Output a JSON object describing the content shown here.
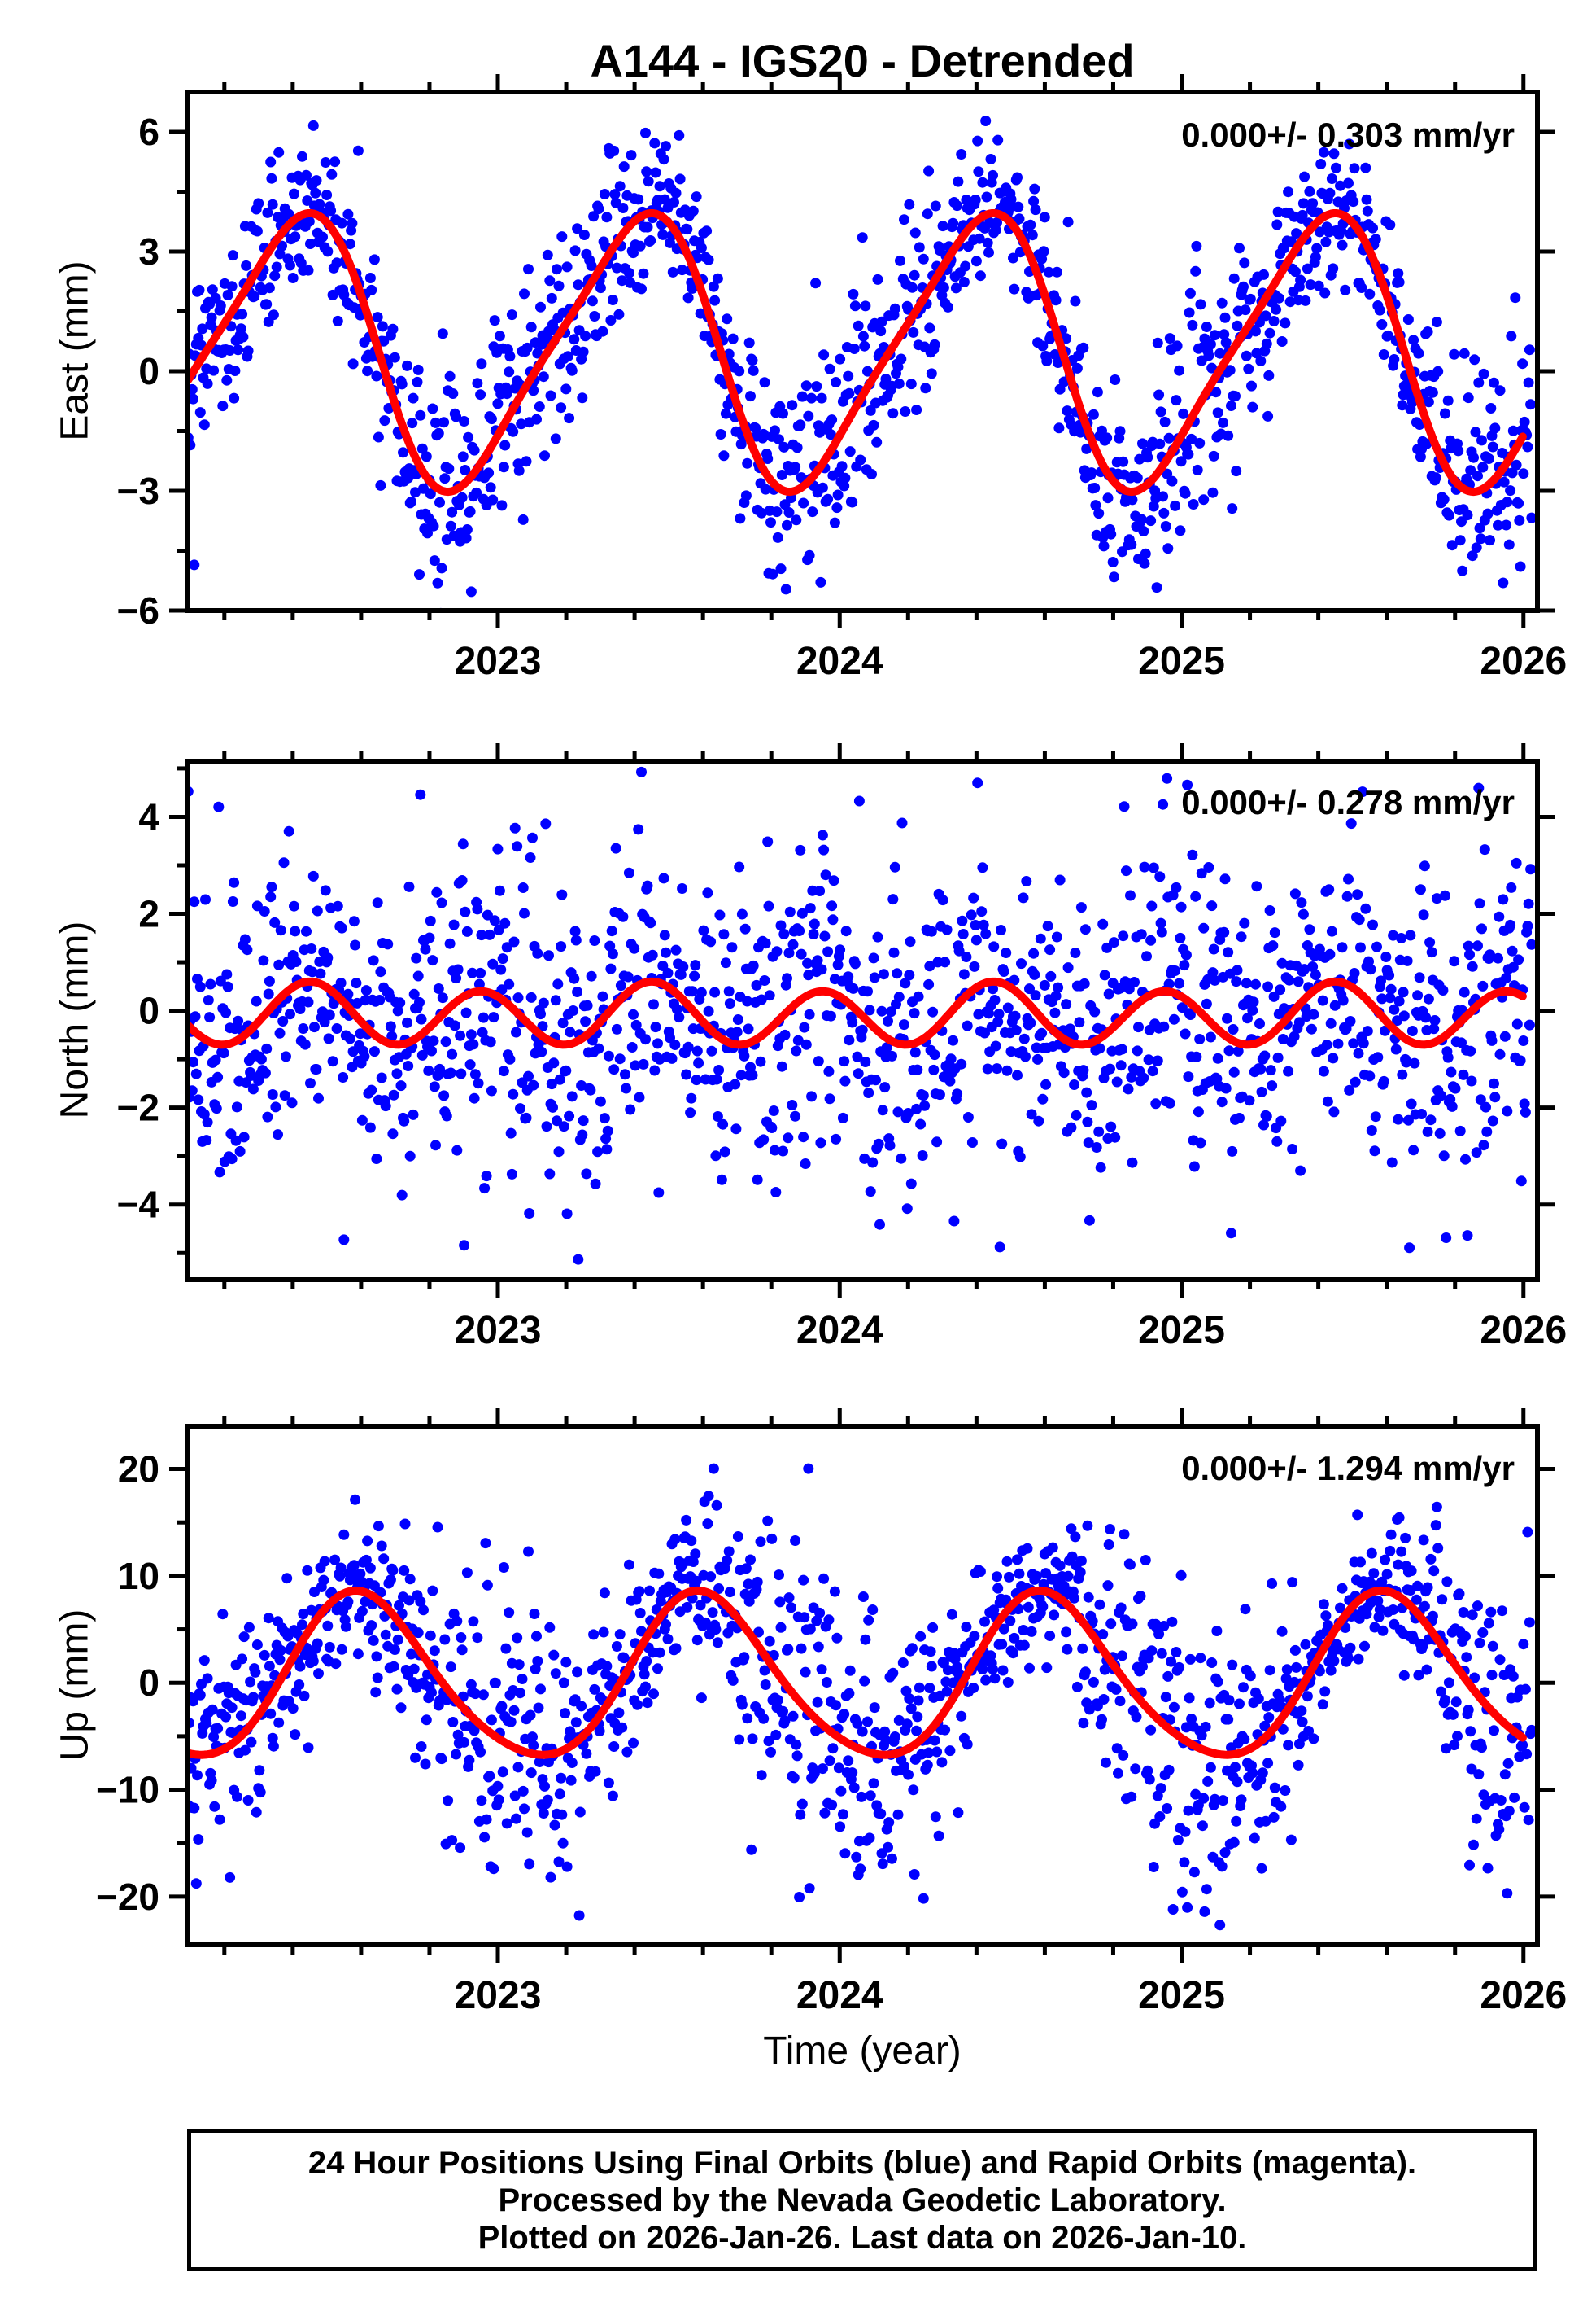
{
  "title": "A144 - IGS20 - Detrended",
  "xlabel": "Time (year)",
  "caption": {
    "lines": [
      "24 Hour Positions Using Final Orbits (blue) and Rapid Orbits (magenta).",
      "Processed by the Nevada Geodetic Laboratory.",
      "Plotted on 2026-Jan-26. Last data on 2026-Jan-10."
    ]
  },
  "colors": {
    "final_orbit_points": "#0000ff",
    "rapid_orbit_points": "#ff00ff",
    "fit_curve": "#ff0000",
    "frame": "#000000",
    "background": "#ffffff"
  },
  "chart_data": {
    "type": "scatter",
    "title": "A144 - IGS20 - Detrended",
    "xlabel": "Time (year)",
    "x_range": [
      2022.091,
      2026.041
    ],
    "x_major_ticks": [
      2023,
      2024,
      2025,
      2026
    ],
    "x_minor_interval": 0.2,
    "data_time_span": [
      2022.094,
      2026.027
    ],
    "fit_time_span": [
      2022.094,
      2026.0
    ],
    "grid": "off",
    "legend": "none",
    "panels": [
      {
        "id": "east",
        "ylabel": "East (mm)",
        "annotation": "0.000+/- 0.303 mm/yr",
        "rate_mm_yr": 0.0,
        "rate_uncertainty_mm_yr": 0.303,
        "y_range": [
          -6.0,
          7.0
        ],
        "y_major_ticks": [
          6,
          3,
          0,
          -3,
          -6
        ],
        "y_minor_interval": 1.5,
        "fit_model": {
          "mean": 0.5,
          "annual_amplitude": 3.3,
          "annual_peak_fraction": 0.4,
          "semiannual_amplitude": 0.6,
          "semiannual_peak_fraction": 0.03,
          "peak_value": 3.9,
          "trough_value": -2.7
        },
        "scatter": {
          "n": 1320,
          "sigma": 1.25,
          "sigma_seasonal_mod": 0.25,
          "seed": 42
        }
      },
      {
        "id": "north",
        "ylabel": "North (mm)",
        "annotation": "0.000+/- 0.278 mm/yr",
        "rate_mm_yr": 0.0,
        "rate_uncertainty_mm_yr": 0.278,
        "y_range": [
          -5.55,
          5.15
        ],
        "y_major_ticks": [
          4,
          2,
          0,
          -2,
          -4
        ],
        "y_minor_interval": 1,
        "fit_model": {
          "mean": -0.1,
          "annual_amplitude": 0.1,
          "annual_peak_fraction": 0.45,
          "semiannual_amplitude": 0.6,
          "semiannual_peak_fraction": 0.45,
          "peak_value": 0.6,
          "trough_value": -0.8
        },
        "scatter": {
          "n": 1320,
          "sigma": 1.5,
          "sigma_seasonal_mod": 0.2,
          "seed": 7
        }
      },
      {
        "id": "up",
        "ylabel": "Up (mm)",
        "annotation": "0.000+/- 1.294 mm/yr",
        "rate_mm_yr": 0.0,
        "rate_uncertainty_mm_yr": 1.294,
        "y_range": [
          -24.5,
          24.0
        ],
        "y_major_ticks": [
          20,
          10,
          0,
          -10,
          -20
        ],
        "y_minor_interval": 5,
        "fit_model": {
          "mean": 0.25,
          "annual_amplitude": 7.6,
          "annual_peak_fraction": 0.6,
          "semiannual_amplitude": 0.9,
          "semiannual_peak_fraction": 0.05,
          "peak_value": 8.0,
          "trough_value": -7.3
        },
        "scatter": {
          "n": 1320,
          "sigma": 5.2,
          "sigma_seasonal_mod": 0.45,
          "seed": 13
        }
      }
    ]
  }
}
